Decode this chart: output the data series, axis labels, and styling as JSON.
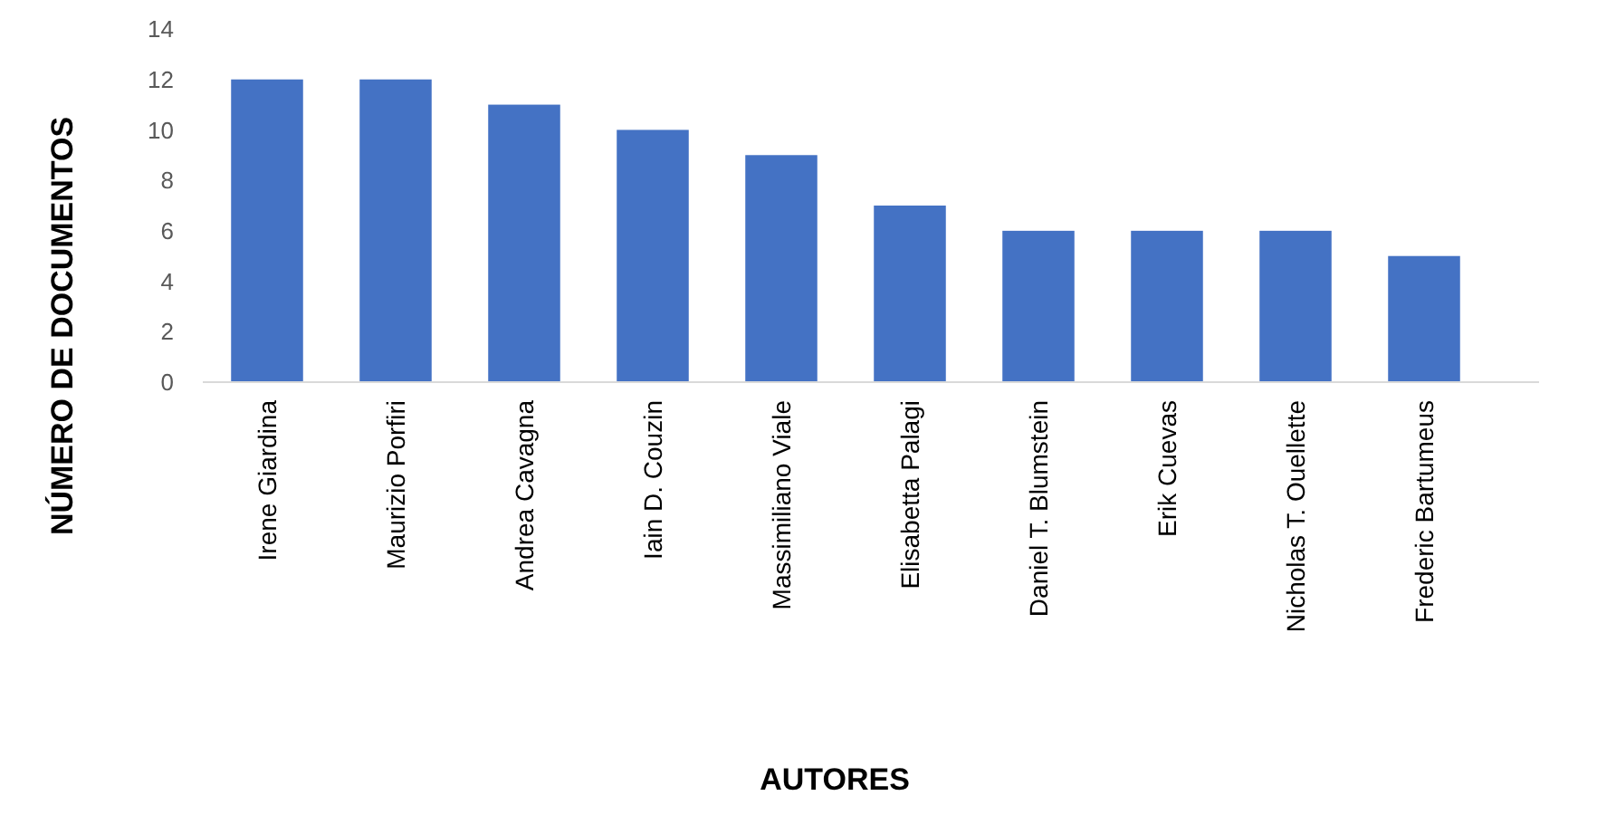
{
  "chart_data": {
    "type": "bar",
    "categories": [
      "Irene Giardina",
      "Maurizio Porfiri",
      "Andrea Cavagna",
      "Iain D. Couzin",
      "Massimiliano Viale",
      "Elisabetta Palagi",
      "Daniel T. Blumstein",
      "Erik Cuevas",
      "Nicholas T. Ouellette",
      "Frederic Bartumeus"
    ],
    "values": [
      12,
      12,
      11,
      10,
      9,
      7,
      6,
      6,
      6,
      5
    ],
    "color": "#4472c4",
    "xlabel": "AUTORES",
    "ylabel": "NÚMERO DE DOCUMENTOS",
    "ylim": [
      0,
      14
    ],
    "yticks": [
      0,
      2,
      4,
      6,
      8,
      10,
      12,
      14
    ],
    "grid": false
  }
}
